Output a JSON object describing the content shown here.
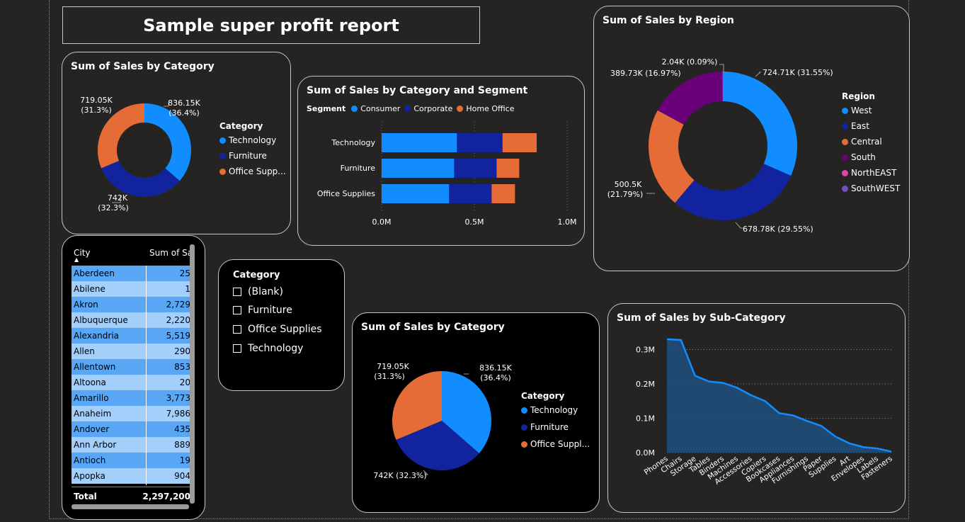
{
  "report_title": "Sample super profit report",
  "colors": {
    "technology": "#118dff",
    "furniture": "#12239e",
    "office": "#e66c37",
    "south": "#6b007b",
    "northeast": "#e044a7",
    "southwest": "#744ec2",
    "area_fill": "#1f4e79",
    "area_line": "#118dff"
  },
  "donut_category": {
    "title": "Sum of Sales by Category",
    "legend_title": "Category",
    "legend": [
      "Technology",
      "Furniture",
      "Office Supp..."
    ],
    "labels": [
      [
        "836.15K",
        "(36.4%)"
      ],
      [
        "742K",
        "(32.3%)"
      ],
      [
        "719.05K",
        "(31.3%)"
      ]
    ]
  },
  "bar_segment": {
    "title": "Sum of Sales by Category and Segment",
    "legend_title": "Segment",
    "legend": [
      "Consumer",
      "Corporate",
      "Home Office"
    ],
    "x_ticks": [
      "0.0M",
      "0.5M",
      "1.0M"
    ]
  },
  "donut_region": {
    "title": "Sum of Sales by Region",
    "legend_title": "Region",
    "legend": [
      "West",
      "East",
      "Central",
      "South",
      "NorthEAST",
      "SouthWEST"
    ],
    "labels": [
      "724.71K (31.55%)",
      "678.78K (29.55%)",
      "500.5K",
      "(21.79%)",
      "389.73K (16.97%)",
      "2.04K (0.09%)"
    ]
  },
  "table": {
    "headers": [
      "City",
      "Sum of Sal"
    ],
    "rows": [
      [
        "Aberdeen",
        "25"
      ],
      [
        "Abilene",
        "1"
      ],
      [
        "Akron",
        "2,729"
      ],
      [
        "Albuquerque",
        "2,220"
      ],
      [
        "Alexandria",
        "5,519"
      ],
      [
        "Allen",
        "290"
      ],
      [
        "Allentown",
        "853"
      ],
      [
        "Altoona",
        "20"
      ],
      [
        "Amarillo",
        "3,773"
      ],
      [
        "Anaheim",
        "7,986"
      ],
      [
        "Andover",
        "435"
      ],
      [
        "Ann Arbor",
        "889"
      ],
      [
        "Antioch",
        "19"
      ],
      [
        "Apopka",
        "904"
      ]
    ],
    "total_label": "Total",
    "total_value": "2,297,200"
  },
  "slicer": {
    "title": "Category",
    "options": [
      "(Blank)",
      "Furniture",
      "Office Supplies",
      "Technology"
    ]
  },
  "pie_category": {
    "title": "Sum of Sales by Category",
    "legend_title": "Category",
    "legend": [
      "Technology",
      "Furniture",
      "Office Suppl..."
    ],
    "labels": [
      [
        "836.15K",
        "(36.4%)"
      ],
      [
        "742K (32.3%)"
      ],
      [
        "719.05K",
        "(31.3%)"
      ]
    ]
  },
  "area_subcategory": {
    "title": "Sum of Sales by Sub-Category",
    "y_ticks": [
      "0.3M",
      "0.2M",
      "0.1M",
      "0.0M"
    ]
  },
  "chart_data": [
    {
      "type": "pie",
      "title": "Sum of Sales by Category",
      "variant": "donut",
      "categories": [
        "Technology",
        "Furniture",
        "Office Supplies"
      ],
      "values": [
        836150,
        742000,
        719050
      ],
      "percents": [
        36.4,
        32.3,
        31.3
      ],
      "legend_position": "right"
    },
    {
      "type": "bar",
      "title": "Sum of Sales by Category and Segment",
      "orientation": "horizontal",
      "stacked": true,
      "categories": [
        "Technology",
        "Furniture",
        "Office Supplies"
      ],
      "series": [
        {
          "name": "Consumer",
          "values": [
            406000,
            391000,
            364000
          ]
        },
        {
          "name": "Corporate",
          "values": [
            246000,
            229000,
            229000
          ]
        },
        {
          "name": "Home Office",
          "values": [
            184000,
            122000,
            126000
          ]
        }
      ],
      "xlim": [
        0,
        1000000
      ],
      "legend_position": "top-left"
    },
    {
      "type": "pie",
      "title": "Sum of Sales by Region",
      "variant": "donut",
      "categories": [
        "West",
        "East",
        "Central",
        "South",
        "NorthEAST",
        "SouthWEST"
      ],
      "values": [
        724710,
        678780,
        500500,
        389730,
        0,
        2040
      ],
      "percents": [
        31.55,
        29.55,
        21.79,
        16.97,
        0,
        0.09
      ],
      "legend_position": "right"
    },
    {
      "type": "pie",
      "title": "Sum of Sales by Category",
      "categories": [
        "Technology",
        "Furniture",
        "Office Supplies"
      ],
      "values": [
        836150,
        742000,
        719050
      ],
      "percents": [
        36.4,
        32.3,
        31.3
      ],
      "legend_position": "right"
    },
    {
      "type": "area",
      "title": "Sum of Sales by Sub-Category",
      "categories": [
        "Phones",
        "Chairs",
        "Storage",
        "Tables",
        "Binders",
        "Machines",
        "Accessories",
        "Copiers",
        "Bookcases",
        "Appliances",
        "Furnishings",
        "Paper",
        "Supplies",
        "Art",
        "Envelopes",
        "Labels",
        "Fasteners"
      ],
      "values": [
        330000,
        328000,
        224000,
        207000,
        203000,
        189000,
        167000,
        150000,
        115000,
        108000,
        92000,
        78000,
        47000,
        27000,
        16000,
        12000,
        3000
      ],
      "ylim": [
        0,
        330000
      ],
      "grid": true
    }
  ]
}
